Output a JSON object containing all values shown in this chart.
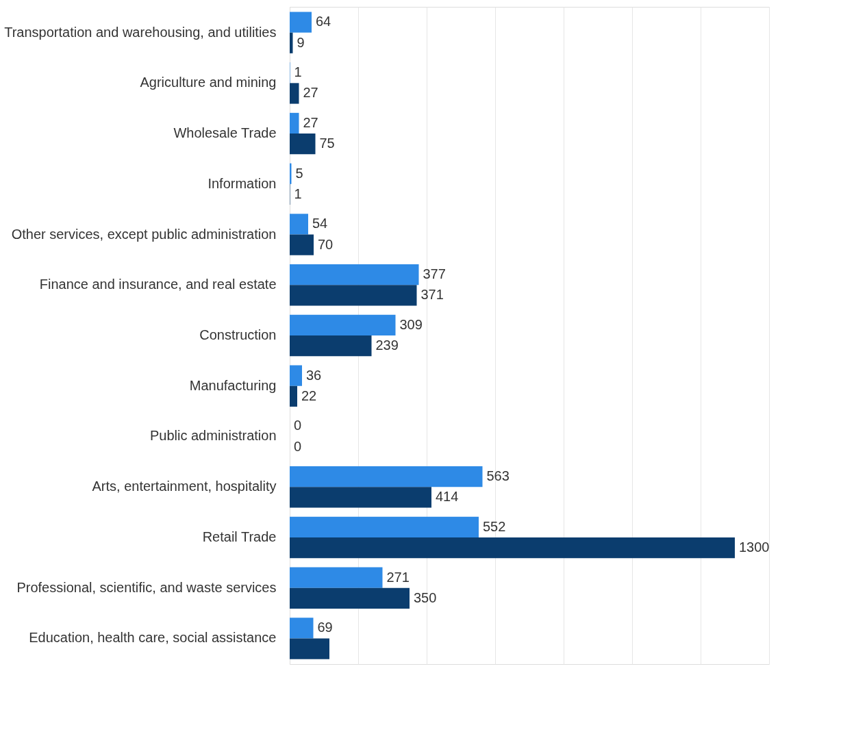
{
  "chart_data": {
    "type": "bar",
    "orientation": "horizontal",
    "categories": [
      "Transportation and warehousing, and utilities",
      "Agriculture and mining",
      "Wholesale Trade",
      "Information",
      "Other services, except public administration",
      "Finance and insurance, and real estate",
      "Construction",
      "Manufacturing",
      "Public administration",
      "Arts, entertainment, hospitality",
      "Retail Trade",
      "Professional, scientific, and waste services",
      "Education, health care, social assistance"
    ],
    "series": [
      {
        "color": "#2e8ae6",
        "values": [
          64,
          1,
          27,
          5,
          54,
          377,
          309,
          36,
          0,
          563,
          552,
          271,
          69
        ],
        "value_labels": [
          "64",
          "1",
          "27",
          "5",
          "54",
          "377",
          "309",
          "36",
          "0",
          "563",
          "552",
          "271",
          "69"
        ]
      },
      {
        "color": "#0b3d6e",
        "values": [
          9,
          27,
          75,
          1,
          70,
          371,
          239,
          22,
          0,
          414,
          1300,
          350,
          116
        ],
        "value_labels": [
          "9",
          "27",
          "75",
          "1",
          "70",
          "371",
          "239",
          "22",
          "0",
          "414",
          "1300",
          "350",
          null
        ]
      }
    ],
    "xlim": [
      0,
      1400
    ],
    "xticks": [
      {
        "value": 0,
        "label": null
      },
      {
        "value": 200,
        "label": null
      },
      {
        "value": 400,
        "label": null
      },
      {
        "value": 600,
        "label": null
      },
      {
        "value": 800,
        "label": null
      },
      {
        "value": 1000,
        "label": null
      },
      {
        "value": 1200,
        "label": null
      },
      {
        "value": 1400,
        "label": null
      }
    ],
    "grid": "x",
    "legend": false
  }
}
